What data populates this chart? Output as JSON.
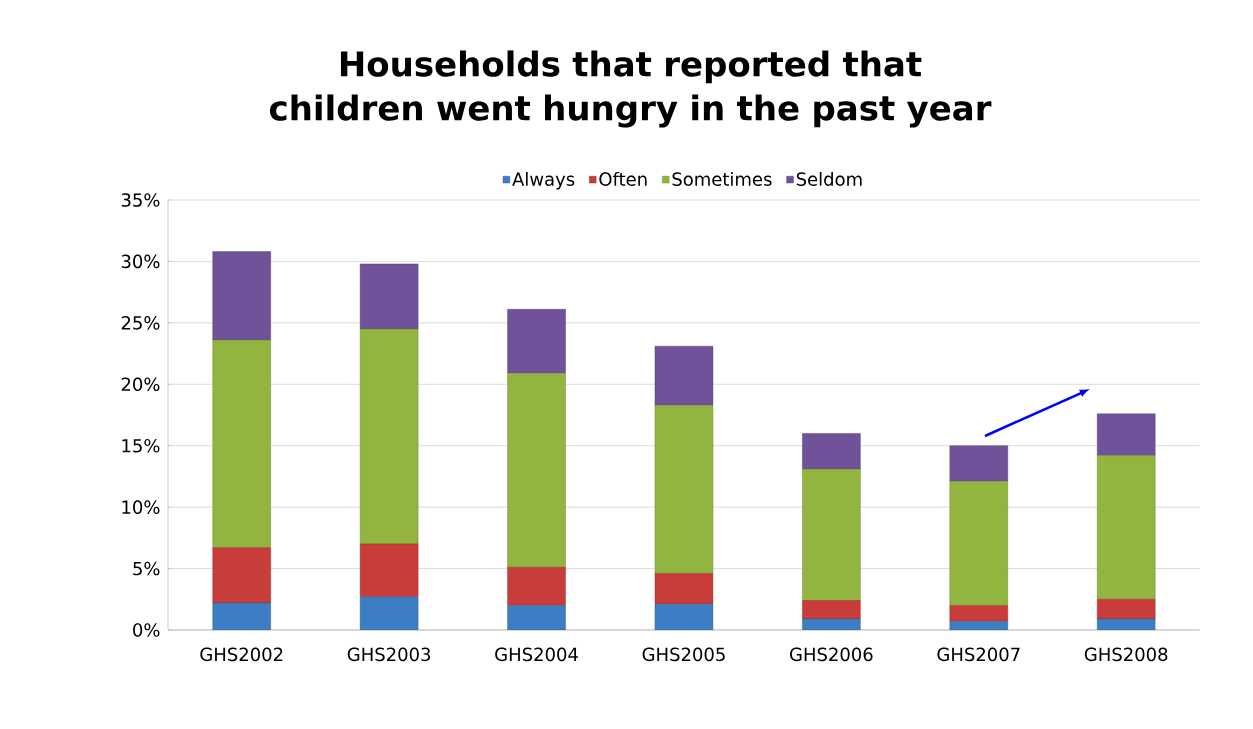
{
  "chart_data": {
    "type": "bar",
    "stacked": true,
    "title": "Households that reported that children went hungry in the past year",
    "categories": [
      "GHS2002",
      "GHS2003",
      "GHS2004",
      "GHS2005",
      "GHS2006",
      "GHS2007",
      "GHS2008"
    ],
    "series": [
      {
        "name": "Always",
        "color": "#3c7dc4",
        "values": [
          2.2,
          2.7,
          2.0,
          2.1,
          0.9,
          0.7,
          0.9
        ]
      },
      {
        "name": "Often",
        "color": "#c83c3a",
        "values": [
          4.5,
          4.3,
          3.1,
          2.5,
          1.5,
          1.3,
          1.6
        ]
      },
      {
        "name": "Sometimes",
        "color": "#92b53f",
        "values": [
          16.9,
          17.5,
          15.8,
          13.7,
          10.7,
          10.1,
          11.7
        ]
      },
      {
        "name": "Seldom",
        "color": "#6f529a",
        "values": [
          7.2,
          5.3,
          5.2,
          4.8,
          2.9,
          2.9,
          3.4
        ]
      }
    ],
    "ylim": [
      0,
      35
    ],
    "yticks": [
      {
        "value": 0,
        "label": "0%"
      },
      {
        "value": 5,
        "label": "5%"
      },
      {
        "value": 10,
        "label": "10%"
      },
      {
        "value": 15,
        "label": "15%"
      },
      {
        "value": 20,
        "label": "20%"
      },
      {
        "value": 25,
        "label": "25%"
      },
      {
        "value": 30,
        "label": "30%"
      },
      {
        "value": 35,
        "label": "35%"
      }
    ],
    "grid": "y",
    "legend": "top"
  }
}
